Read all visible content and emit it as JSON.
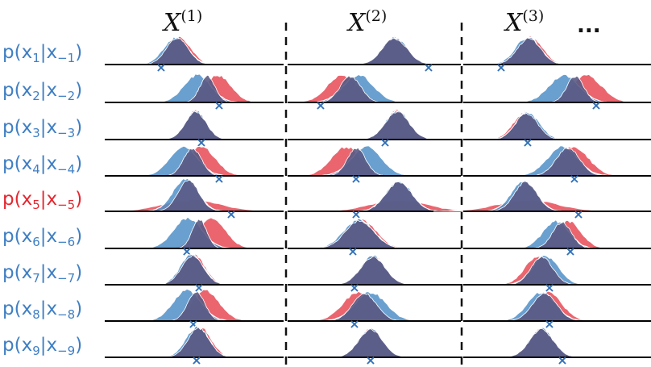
{
  "columns": [
    {
      "var": "X",
      "sup": "(1)"
    },
    {
      "var": "X",
      "sup": "(2)"
    },
    {
      "var": "X",
      "sup": "(3)"
    }
  ],
  "ellipsis": "...",
  "rows": [
    {
      "prefix": "p(x",
      "i": "1",
      "mid": "|x",
      "cond": "−1",
      "close": ")",
      "highlight": false
    },
    {
      "prefix": "p(x",
      "i": "2",
      "mid": "|x",
      "cond": "−2",
      "close": ")",
      "highlight": false
    },
    {
      "prefix": "p(x",
      "i": "3",
      "mid": "|x",
      "cond": "−3",
      "close": ")",
      "highlight": false
    },
    {
      "prefix": "p(x",
      "i": "4",
      "mid": "|x",
      "cond": "−4",
      "close": ")",
      "highlight": false
    },
    {
      "prefix": "p(x",
      "i": "5",
      "mid": "|x",
      "cond": "−5",
      "close": ")",
      "highlight": true
    },
    {
      "prefix": "p(x",
      "i": "6",
      "mid": "|x",
      "cond": "−6",
      "close": ")",
      "highlight": false
    },
    {
      "prefix": "p(x",
      "i": "7",
      "mid": "|x",
      "cond": "−7",
      "close": ")",
      "highlight": false
    },
    {
      "prefix": "p(x",
      "i": "8",
      "mid": "|x",
      "cond": "−8",
      "close": ")",
      "highlight": false
    },
    {
      "prefix": "p(x",
      "i": "9",
      "mid": "|x",
      "cond": "−9",
      "close": ")",
      "highlight": false
    }
  ],
  "marker_symbol": "×",
  "colors": {
    "label_blue": "#3f7fc4",
    "label_red": "#e5272f",
    "blue_fill": "#4f8fc8",
    "red_fill": "#e84a55",
    "overlap_fill": "#5a5a84",
    "marker_blue": "#2f6fb8",
    "baseline": "#000000"
  }
}
